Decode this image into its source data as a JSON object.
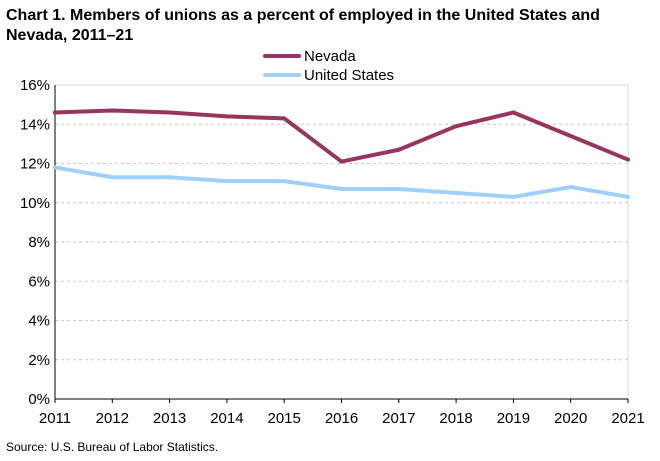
{
  "chart_data": {
    "type": "line",
    "title": "Chart 1. Members of unions as a percent of employed  in the United States and Nevada, 2011–21",
    "source": "Source:  U.S. Bureau  of Labor Statistics.",
    "x": [
      "2011",
      "2012",
      "2013",
      "2014",
      "2015",
      "2016",
      "2017",
      "2018",
      "2019",
      "2020",
      "2021"
    ],
    "ylim": [
      0,
      16
    ],
    "yticks": [
      0,
      2,
      4,
      6,
      8,
      10,
      12,
      14,
      16
    ],
    "ytick_labels": [
      "0%",
      "2%",
      "4%",
      "6%",
      "8%",
      "10%",
      "12%",
      "14%",
      "16%"
    ],
    "grid": true,
    "legend_position": "top-center",
    "series": [
      {
        "name": "Nevada",
        "color": "#973561",
        "values": [
          14.6,
          14.7,
          14.6,
          14.4,
          14.3,
          12.1,
          12.7,
          13.9,
          14.6,
          13.4,
          12.2
        ]
      },
      {
        "name": "United States",
        "color": "#9fd0fa",
        "values": [
          11.8,
          11.3,
          11.3,
          11.1,
          11.1,
          10.7,
          10.7,
          10.5,
          10.3,
          10.8,
          10.3
        ]
      }
    ]
  }
}
